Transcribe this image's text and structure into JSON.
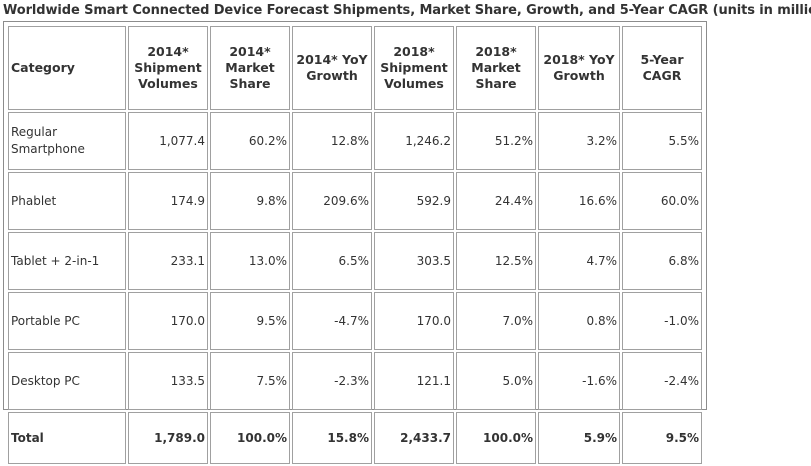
{
  "title": "Worldwide Smart Connected Device Forecast Shipments, Market Share, Growth, and 5-Year CAGR (units in millions)",
  "headers": [
    [
      "Category"
    ],
    [
      "2014*",
      "Shipment",
      "Volumes"
    ],
    [
      "2014*",
      "Market",
      "Share"
    ],
    [
      "2014* YoY",
      "Growth"
    ],
    [
      "2018*",
      "Shipment",
      "Volumes"
    ],
    [
      "2018*",
      "Market",
      "Share"
    ],
    [
      "2018* YoY",
      "Growth"
    ],
    [
      "5-Year",
      "CAGR"
    ]
  ],
  "rows": [
    {
      "category": [
        "Regular",
        "Smartphone"
      ],
      "values": [
        "1,077.4",
        "60.2%",
        "12.8%",
        "1,246.2",
        "51.2%",
        "3.2%",
        "5.5%"
      ]
    },
    {
      "category": [
        "Phablet"
      ],
      "values": [
        "174.9",
        "9.8%",
        "209.6%",
        "592.9",
        "24.4%",
        "16.6%",
        "60.0%"
      ]
    },
    {
      "category": [
        "Tablet + 2-in-1"
      ],
      "values": [
        "233.1",
        "13.0%",
        "6.5%",
        "303.5",
        "12.5%",
        "4.7%",
        "6.8%"
      ]
    },
    {
      "category": [
        "Portable PC"
      ],
      "values": [
        "170.0",
        "9.5%",
        "-4.7%",
        "170.0",
        "7.0%",
        "0.8%",
        "-1.0%"
      ]
    },
    {
      "category": [
        "Desktop PC"
      ],
      "values": [
        "133.5",
        "7.5%",
        "-2.3%",
        "121.1",
        "5.0%",
        "-1.6%",
        "-2.4%"
      ]
    }
  ],
  "total": {
    "category": "Total",
    "values": [
      "1,789.0",
      "100.0%",
      "15.8%",
      "2,433.7",
      "100.0%",
      "5.9%",
      "9.5%"
    ]
  }
}
